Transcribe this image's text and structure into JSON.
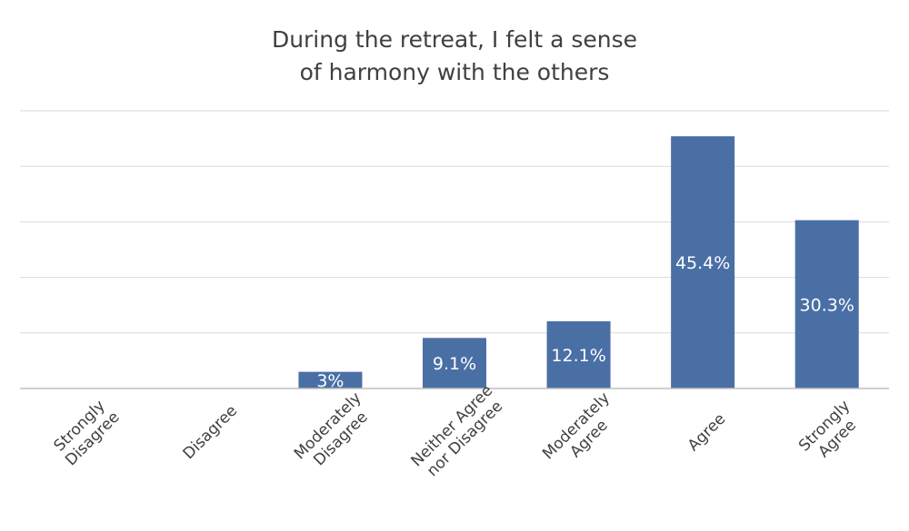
{
  "chart_data": {
    "type": "bar",
    "title_lines": [
      "During the retreat, I felt a sense",
      "of harmony with the others"
    ],
    "categories": [
      [
        "Strongly",
        "Disagree"
      ],
      [
        "Disagree"
      ],
      [
        "Moderately",
        "Disagree"
      ],
      [
        "Neither Agree",
        "nor Disagree"
      ],
      [
        "Moderately",
        "Agree"
      ],
      [
        "Agree"
      ],
      [
        "Strongly",
        "Agree"
      ]
    ],
    "values": [
      0,
      0,
      3,
      9.1,
      12.1,
      45.4,
      30.3
    ],
    "data_labels": [
      "",
      "",
      "3%",
      "9.1%",
      "12.1%",
      "45.4%",
      "30.3%"
    ],
    "ylim": [
      0,
      50
    ],
    "gridlines": [
      10,
      20,
      30,
      40,
      50
    ],
    "y_axis_visible": false,
    "legend": "none",
    "colors": {
      "bar": "#4a6fa5",
      "grid": "#d9d9d9",
      "axis": "#bfbfbf",
      "label_inside": "#ffffff",
      "text": "#404040"
    }
  }
}
